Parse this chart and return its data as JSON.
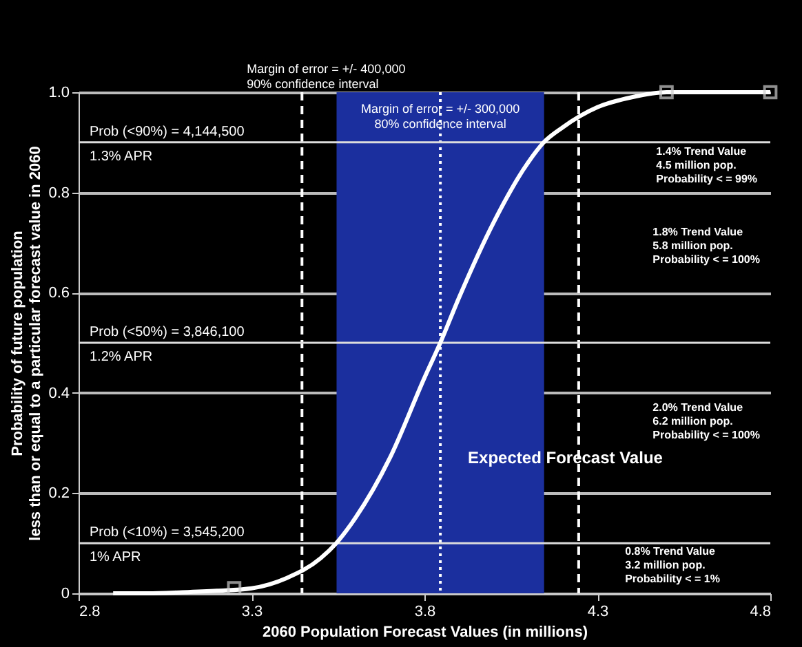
{
  "chart_data": {
    "type": "line",
    "xlabel": "2060 Population Forecast Values (in millions)",
    "ylabel": "Probability of future population\nless than or equal to a particular forecast value in 2060",
    "xlim": [
      2.8,
      4.8
    ],
    "ylim": [
      0,
      1
    ],
    "xticks": [
      2.8,
      3.3,
      3.8,
      4.3,
      4.8
    ],
    "yticks": [
      0,
      0.2,
      0.4,
      0.6,
      0.8,
      {
        "value": 1,
        "label": "1.0"
      }
    ],
    "grid": "y",
    "series": [
      {
        "color": "#ffffff",
        "x": [
          2.9,
          3.0,
          3.1,
          3.2,
          3.3,
          3.4,
          3.5,
          3.545,
          3.6,
          3.7,
          3.8,
          3.846,
          3.9,
          4.0,
          4.1,
          4.145,
          4.2,
          4.3,
          4.4,
          4.5,
          4.6,
          4.7,
          4.8
        ],
        "values": [
          0.0,
          0.0,
          0.002,
          0.005,
          0.01,
          0.03,
          0.07,
          0.1,
          0.15,
          0.27,
          0.43,
          0.5,
          0.59,
          0.74,
          0.86,
          0.9,
          0.93,
          0.97,
          0.99,
          1.0,
          1.0,
          1.0,
          1.0
        ]
      },
      {
        "type": "scatter",
        "color": "#cccccc",
        "marker": "square",
        "x": [
          3.25,
          4.5,
          4.8
        ],
        "values": [
          0.01,
          1.0,
          1.0
        ]
      }
    ],
    "bands": [
      {
        "axis": "x",
        "from": 3.546,
        "to": 4.146,
        "color": "#1b2f9e",
        "label": "Margin of error = +/- 300,000\n80% confidence interval"
      }
    ],
    "ref_lines": [
      {
        "axis": "x",
        "value": 3.446,
        "line_style": "dashed",
        "color": "#ffffff",
        "label": "Margin of error = +/- 400,000\n90% confidence interval"
      },
      {
        "axis": "x",
        "value": 4.246,
        "line_style": "dashed",
        "color": "#ffffff"
      },
      {
        "axis": "x",
        "value": 3.846,
        "line_style": "dotted",
        "color": "#ffffff",
        "label": "Expected Forecast Value"
      },
      {
        "axis": "y",
        "value": 0.9,
        "color": "#dddddd",
        "label": "Prob (<90%) = 4,144,500\n1.3% APR"
      },
      {
        "axis": "y",
        "value": 0.5,
        "color": "#dddddd",
        "label": "Prob (<50%) = 3,846,100\n1.2% APR"
      },
      {
        "axis": "y",
        "value": 0.1,
        "color": "#dddddd",
        "label": "Prob (<10%) = 3,545,200\n1% APR"
      }
    ],
    "annotations": [
      "1.4% Trend Value\n4.5 million pop.\nProbability < = 99%",
      "1.8% Trend Value\n5.8 million pop.\nProbability < = 100%",
      "2.0% Trend Value\n6.2 million pop.\nProbability < = 100%",
      "0.8% Trend Value\n3.2 million pop.\nProbability < = 1%"
    ]
  }
}
